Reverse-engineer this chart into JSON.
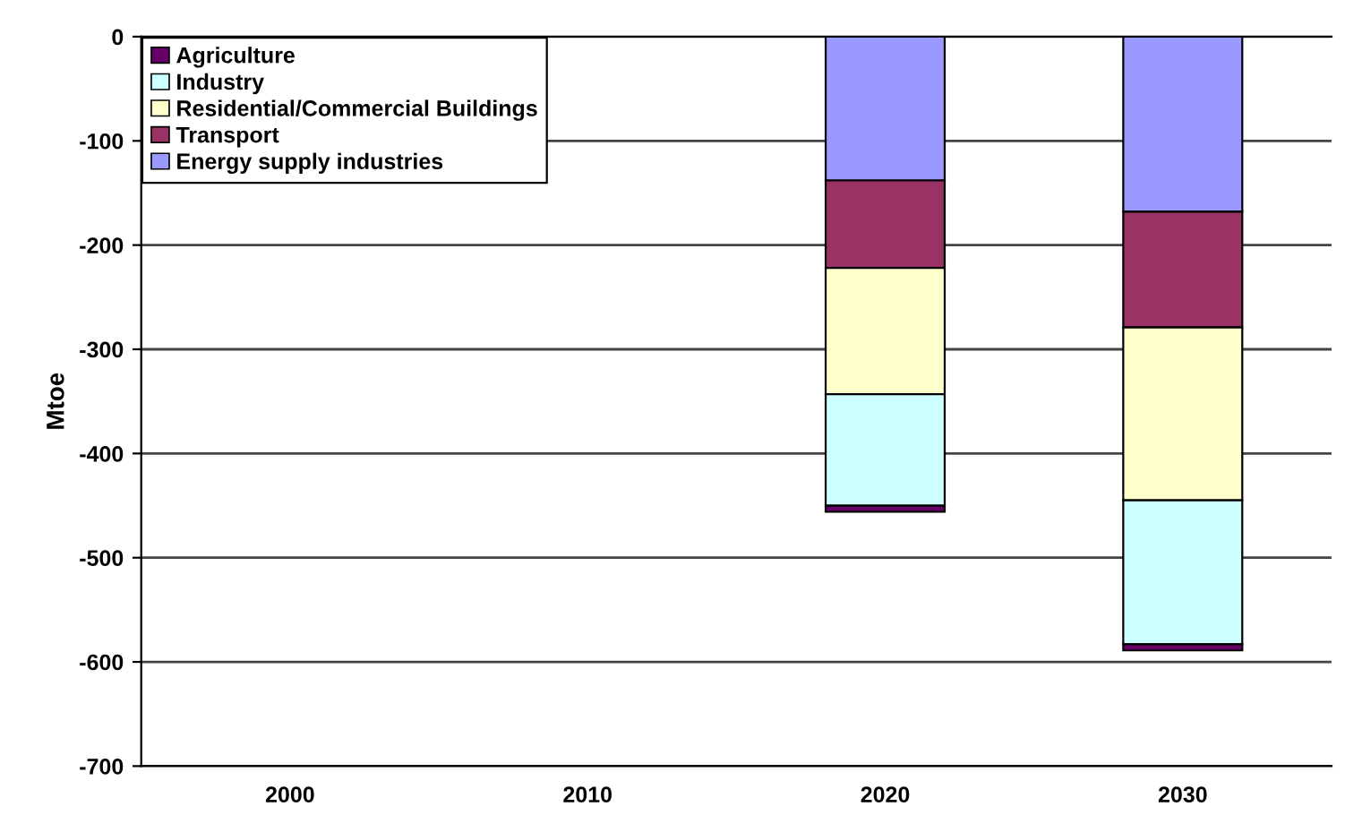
{
  "chart_data": {
    "type": "bar",
    "stacked": true,
    "ylabel": "Mtoe",
    "categories": [
      "2000",
      "2010",
      "2020",
      "2030"
    ],
    "series": [
      {
        "name": "Energy supply industries",
        "color": "#9999ff",
        "values": [
          null,
          null,
          -138,
          -168
        ]
      },
      {
        "name": "Transport",
        "color": "#993366",
        "values": [
          null,
          null,
          -84,
          -111
        ]
      },
      {
        "name": "Residential/Commercial Buildings",
        "color": "#ffffcc",
        "values": [
          null,
          null,
          -121,
          -166
        ]
      },
      {
        "name": "Industry",
        "color": "#ccffff",
        "values": [
          null,
          null,
          -107,
          -138
        ]
      },
      {
        "name": "Agriculture",
        "color": "#660066",
        "values": [
          null,
          null,
          -6,
          -6
        ]
      }
    ],
    "ylim": [
      -700,
      0
    ],
    "yticks": [
      -700,
      -600,
      -500,
      -400,
      -300,
      -200,
      -100,
      0
    ],
    "grid": "y",
    "legend": "top left"
  }
}
